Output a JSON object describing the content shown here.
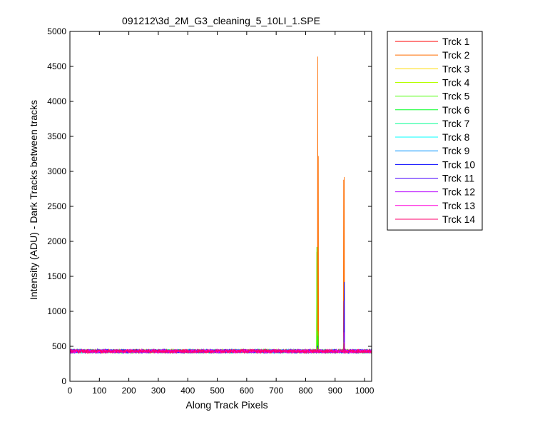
{
  "chart_data": {
    "type": "line",
    "title": "091212\\3d_2M_G3_cleaning_5_10LI_1.SPE",
    "xlabel": "Along Track Pixels",
    "ylabel": "Intensity (ADU) - Dark Tracks between tracks",
    "xlim": [
      0,
      1024
    ],
    "ylim": [
      0,
      5000
    ],
    "xticks": [
      0,
      100,
      200,
      300,
      400,
      500,
      600,
      700,
      800,
      900,
      1000
    ],
    "yticks": [
      0,
      500,
      1000,
      1500,
      2000,
      2500,
      3000,
      3500,
      4000,
      4500,
      5000
    ],
    "grid": false,
    "legend_position": "outside-right",
    "baseline_level": 430,
    "noise_amplitude": 25,
    "series": [
      {
        "name": "Trck 1",
        "color": "#ff0000",
        "peaks": [
          {
            "x": 841,
            "y": 500
          },
          {
            "x": 930,
            "y": 520
          }
        ]
      },
      {
        "name": "Trck 2",
        "color": "#ff6d00",
        "peaks": [
          {
            "x": 838,
            "y": 1850
          },
          {
            "x": 841,
            "y": 4640
          },
          {
            "x": 843,
            "y": 3220
          },
          {
            "x": 929,
            "y": 2880
          },
          {
            "x": 931,
            "y": 2920
          }
        ]
      },
      {
        "name": "Trck 3",
        "color": "#ffdb00",
        "peaks": [
          {
            "x": 841,
            "y": 520
          },
          {
            "x": 930,
            "y": 560
          }
        ]
      },
      {
        "name": "Trck 4",
        "color": "#b6ff00",
        "peaks": [
          {
            "x": 841,
            "y": 560
          },
          {
            "x": 930,
            "y": 600
          }
        ]
      },
      {
        "name": "Trck 5",
        "color": "#49ff00",
        "peaks": [
          {
            "x": 838,
            "y": 1920
          },
          {
            "x": 842,
            "y": 720
          },
          {
            "x": 929,
            "y": 640
          }
        ]
      },
      {
        "name": "Trck 6",
        "color": "#00ff24",
        "peaks": [
          {
            "x": 842,
            "y": 650
          },
          {
            "x": 930,
            "y": 600
          }
        ]
      },
      {
        "name": "Trck 7",
        "color": "#00ff92",
        "peaks": [
          {
            "x": 841,
            "y": 500
          },
          {
            "x": 930,
            "y": 520
          }
        ]
      },
      {
        "name": "Trck 8",
        "color": "#00ffff",
        "peaks": [
          {
            "x": 841,
            "y": 490
          },
          {
            "x": 930,
            "y": 510
          }
        ]
      },
      {
        "name": "Trck 9",
        "color": "#0092ff",
        "peaks": [
          {
            "x": 841,
            "y": 500
          },
          {
            "x": 930,
            "y": 530
          }
        ]
      },
      {
        "name": "Trck 10",
        "color": "#0000ff",
        "peaks": [
          {
            "x": 841,
            "y": 510
          },
          {
            "x": 931,
            "y": 1420
          }
        ]
      },
      {
        "name": "Trck 11",
        "color": "#4900ff",
        "peaks": [
          {
            "x": 841,
            "y": 490
          },
          {
            "x": 930,
            "y": 1150
          }
        ]
      },
      {
        "name": "Trck 12",
        "color": "#b600ff",
        "peaks": [
          {
            "x": 841,
            "y": 480
          },
          {
            "x": 930,
            "y": 700
          }
        ]
      },
      {
        "name": "Trck 13",
        "color": "#ff00db",
        "peaks": [
          {
            "x": 841,
            "y": 470
          },
          {
            "x": 930,
            "y": 560
          }
        ]
      },
      {
        "name": "Trck 14",
        "color": "#ff006d",
        "peaks": [
          {
            "x": 841,
            "y": 480
          },
          {
            "x": 930,
            "y": 540
          }
        ]
      }
    ]
  }
}
